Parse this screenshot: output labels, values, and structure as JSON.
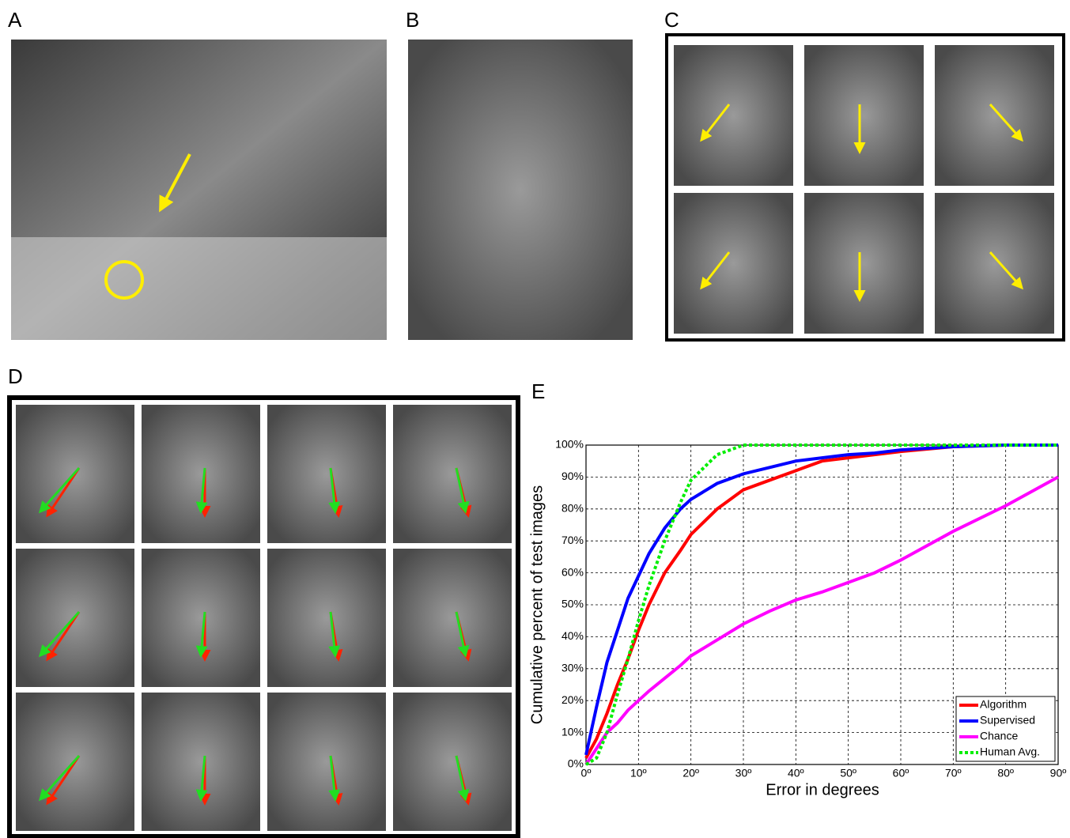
{
  "panel_labels": [
    "A",
    "B",
    "C",
    "D",
    "E"
  ],
  "chart_data": {
    "type": "line",
    "xlabel": "Error in degrees",
    "ylabel": "Cumulative percent of test images",
    "x": [
      0,
      2,
      4,
      6,
      8,
      10,
      12,
      15,
      18,
      20,
      25,
      30,
      35,
      40,
      45,
      50,
      55,
      60,
      70,
      80,
      90
    ],
    "series": [
      {
        "name": "Algorithm",
        "color": "#ff0000",
        "linestyle": "solid",
        "values": [
          2,
          8,
          16,
          25,
          33,
          42,
          50,
          60,
          67,
          72,
          80,
          86,
          89,
          92,
          95,
          96,
          97,
          98,
          99.5,
          100,
          100
        ]
      },
      {
        "name": "Supervised",
        "color": "#0000ff",
        "linestyle": "solid",
        "values": [
          3,
          18,
          32,
          42,
          52,
          59,
          66,
          74,
          80,
          83,
          88,
          91,
          93,
          95,
          96,
          97,
          97.5,
          98.5,
          99.5,
          100,
          100
        ]
      },
      {
        "name": "Chance",
        "color": "#ff00ff",
        "linestyle": "solid",
        "values": [
          0,
          5,
          10,
          13,
          17,
          20,
          23,
          27,
          31,
          34,
          39,
          44,
          48,
          51.5,
          54,
          57,
          60,
          64,
          73,
          81,
          90
        ]
      },
      {
        "name": "Human Avg.",
        "color": "#00ee00",
        "linestyle": "dotted",
        "values": [
          0,
          2,
          10,
          22,
          33,
          45,
          56,
          70,
          82,
          89,
          97,
          100,
          100,
          100,
          100,
          100,
          100,
          100,
          100,
          100,
          100
        ]
      }
    ],
    "xlim": [
      0,
      90
    ],
    "ylim": [
      0,
      100
    ],
    "xticks": [
      {
        "value": 0,
        "label": "0º"
      },
      {
        "value": 10,
        "label": "10º"
      },
      {
        "value": 20,
        "label": "20º"
      },
      {
        "value": 30,
        "label": "30º"
      },
      {
        "value": 40,
        "label": "40º"
      },
      {
        "value": 50,
        "label": "50º"
      },
      {
        "value": 60,
        "label": "60º"
      },
      {
        "value": 70,
        "label": "70º"
      },
      {
        "value": 80,
        "label": "80º"
      },
      {
        "value": 90,
        "label": "90º"
      }
    ],
    "yticks": [
      {
        "value": 0,
        "label": "0%"
      },
      {
        "value": 10,
        "label": "10%"
      },
      {
        "value": 20,
        "label": "20%"
      },
      {
        "value": 30,
        "label": "30%"
      },
      {
        "value": 40,
        "label": "40%"
      },
      {
        "value": 50,
        "label": "50%"
      },
      {
        "value": 60,
        "label": "60%"
      },
      {
        "value": 70,
        "label": "70%"
      },
      {
        "value": 80,
        "label": "80%"
      },
      {
        "value": 90,
        "label": "90%"
      },
      {
        "value": 100,
        "label": "100%"
      }
    ],
    "grid": true,
    "legend": "lower right"
  }
}
